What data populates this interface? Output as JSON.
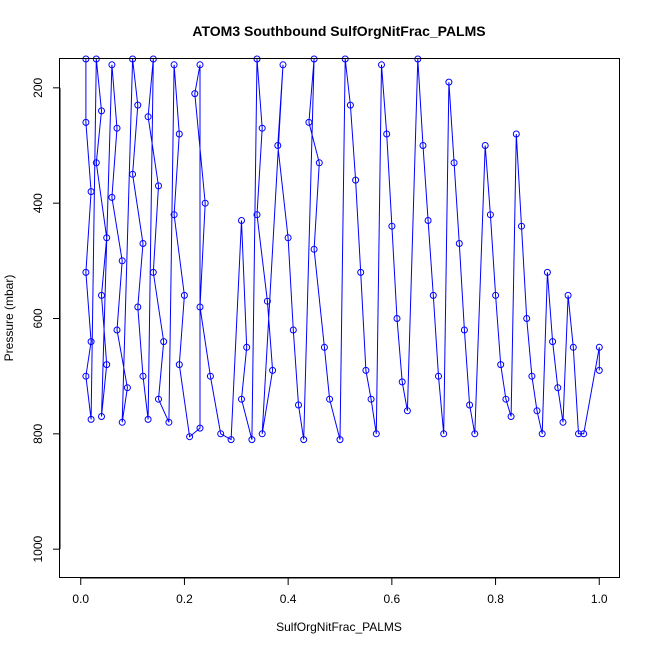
{
  "chart_data": {
    "type": "scatter",
    "title": "ATOM3 Southbound SulfOrgNitFrac_PALMS",
    "xlabel": "SulfOrgNitFrac_PALMS",
    "ylabel": "Pressure (mbar)",
    "xlim": [
      -0.04,
      1.04
    ],
    "ylim": [
      1050,
      150
    ],
    "y_axis": "reversed",
    "xticks": [
      0.0,
      0.2,
      0.4,
      0.6,
      0.8,
      1.0
    ],
    "xtick_labels": [
      "0.0",
      "0.2",
      "0.4",
      "0.6",
      "0.8",
      "1.0"
    ],
    "yticks": [
      200,
      400,
      600,
      800,
      1000
    ],
    "ytick_labels": [
      "200",
      "400",
      "600",
      "800",
      "1000"
    ],
    "grid": false,
    "marker": "open-circle",
    "connected": true,
    "series_color": "#0000FF",
    "series": [
      {
        "points": [
          [
            0.01,
            150
          ],
          [
            0.01,
            260
          ],
          [
            0.02,
            380
          ],
          [
            0.01,
            520
          ],
          [
            0.02,
            640
          ],
          [
            0.01,
            700
          ],
          [
            0.02,
            775
          ],
          [
            0.03,
            150
          ],
          [
            0.04,
            240
          ],
          [
            0.03,
            330
          ],
          [
            0.05,
            460
          ],
          [
            0.04,
            560
          ],
          [
            0.05,
            680
          ],
          [
            0.04,
            770
          ],
          [
            0.06,
            160
          ],
          [
            0.07,
            270
          ],
          [
            0.06,
            390
          ],
          [
            0.08,
            500
          ],
          [
            0.07,
            620
          ],
          [
            0.09,
            720
          ],
          [
            0.08,
            780
          ],
          [
            0.1,
            150
          ],
          [
            0.11,
            230
          ],
          [
            0.1,
            350
          ],
          [
            0.12,
            470
          ],
          [
            0.11,
            580
          ],
          [
            0.12,
            700
          ],
          [
            0.13,
            775
          ],
          [
            0.14,
            150
          ],
          [
            0.13,
            250
          ],
          [
            0.15,
            370
          ],
          [
            0.14,
            520
          ],
          [
            0.16,
            640
          ],
          [
            0.15,
            740
          ],
          [
            0.17,
            780
          ],
          [
            0.18,
            160
          ],
          [
            0.19,
            280
          ],
          [
            0.18,
            420
          ],
          [
            0.2,
            560
          ],
          [
            0.19,
            680
          ],
          [
            0.21,
            805
          ],
          [
            0.23,
            790
          ],
          [
            0.23,
            160
          ],
          [
            0.22,
            210
          ],
          [
            0.24,
            400
          ],
          [
            0.23,
            580
          ],
          [
            0.25,
            700
          ],
          [
            0.27,
            800
          ],
          [
            0.29,
            810
          ],
          [
            0.31,
            430
          ],
          [
            0.32,
            650
          ],
          [
            0.31,
            740
          ],
          [
            0.33,
            810
          ],
          [
            0.34,
            150
          ],
          [
            0.35,
            270
          ],
          [
            0.34,
            420
          ],
          [
            0.36,
            570
          ],
          [
            0.37,
            690
          ],
          [
            0.35,
            800
          ],
          [
            0.39,
            160
          ],
          [
            0.38,
            300
          ],
          [
            0.4,
            460
          ],
          [
            0.41,
            620
          ],
          [
            0.42,
            750
          ],
          [
            0.43,
            810
          ],
          [
            0.45,
            150
          ],
          [
            0.44,
            260
          ],
          [
            0.46,
            330
          ],
          [
            0.45,
            480
          ],
          [
            0.47,
            650
          ],
          [
            0.48,
            740
          ],
          [
            0.5,
            810
          ],
          [
            0.51,
            150
          ],
          [
            0.52,
            230
          ],
          [
            0.53,
            360
          ],
          [
            0.54,
            520
          ],
          [
            0.55,
            690
          ],
          [
            0.56,
            740
          ],
          [
            0.57,
            800
          ],
          [
            0.58,
            160
          ],
          [
            0.59,
            280
          ],
          [
            0.6,
            440
          ],
          [
            0.61,
            600
          ],
          [
            0.62,
            710
          ],
          [
            0.63,
            760
          ],
          [
            0.65,
            150
          ],
          [
            0.66,
            300
          ],
          [
            0.67,
            430
          ],
          [
            0.68,
            560
          ],
          [
            0.69,
            700
          ],
          [
            0.7,
            800
          ],
          [
            0.71,
            190
          ],
          [
            0.72,
            330
          ],
          [
            0.73,
            470
          ],
          [
            0.74,
            620
          ],
          [
            0.75,
            750
          ],
          [
            0.76,
            800
          ],
          [
            0.78,
            300
          ],
          [
            0.79,
            420
          ],
          [
            0.8,
            560
          ],
          [
            0.81,
            680
          ],
          [
            0.82,
            740
          ],
          [
            0.83,
            770
          ],
          [
            0.84,
            280
          ],
          [
            0.85,
            440
          ],
          [
            0.86,
            600
          ],
          [
            0.87,
            700
          ],
          [
            0.88,
            760
          ],
          [
            0.89,
            800
          ],
          [
            0.9,
            520
          ],
          [
            0.91,
            640
          ],
          [
            0.92,
            720
          ],
          [
            0.93,
            780
          ],
          [
            0.94,
            560
          ],
          [
            0.95,
            650
          ],
          [
            0.96,
            800
          ],
          [
            0.97,
            800
          ],
          [
            1.0,
            650
          ],
          [
            1.0,
            690
          ]
        ]
      }
    ]
  }
}
